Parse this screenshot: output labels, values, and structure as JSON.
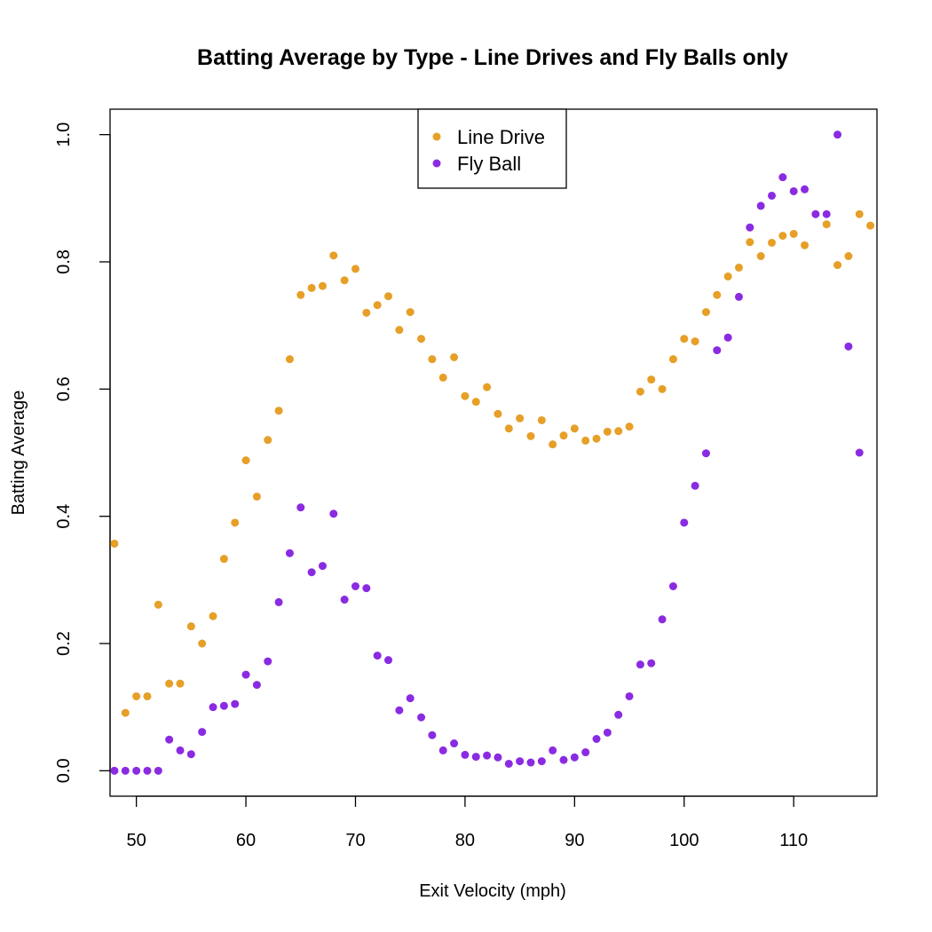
{
  "chart_data": {
    "type": "scatter",
    "title": "Batting Average by Type - Line Drives and Fly Balls only",
    "xlabel": "Exit Velocity (mph)",
    "ylabel": "Batting Average",
    "xlim": [
      47.6,
      117.6
    ],
    "ylim": [
      -0.04,
      1.04
    ],
    "xticks": [
      50,
      60,
      70,
      80,
      90,
      100,
      110
    ],
    "xtick_labels": [
      "50",
      "60",
      "70",
      "80",
      "90",
      "100",
      "110"
    ],
    "yticks": [
      0.0,
      0.2,
      0.4,
      0.6,
      0.8,
      1.0
    ],
    "ytick_labels": [
      "0.0",
      "0.2",
      "0.4",
      "0.6",
      "0.8",
      "1.0"
    ],
    "grid": false,
    "legend_position": "top-center",
    "series": [
      {
        "name": "Line Drive",
        "color": "#E69F27",
        "x": [
          48,
          49,
          50,
          51,
          52,
          53,
          54,
          55,
          56,
          57,
          58,
          59,
          60,
          61,
          62,
          63,
          64,
          65,
          66,
          67,
          68,
          69,
          70,
          71,
          72,
          73,
          74,
          75,
          76,
          77,
          78,
          79,
          80,
          81,
          82,
          83,
          84,
          85,
          86,
          87,
          88,
          89,
          90,
          91,
          92,
          93,
          94,
          95,
          96,
          97,
          98,
          99,
          100,
          101,
          102,
          103,
          104,
          105,
          106,
          107,
          108,
          109,
          110,
          111,
          112,
          113,
          114,
          115,
          116,
          117
        ],
        "y": [
          0.357,
          0.091,
          0.117,
          0.117,
          0.261,
          0.137,
          0.137,
          0.227,
          0.2,
          0.243,
          0.333,
          0.39,
          0.488,
          0.431,
          0.52,
          0.566,
          0.647,
          0.748,
          0.759,
          0.762,
          0.81,
          0.771,
          0.789,
          0.72,
          0.732,
          0.746,
          0.693,
          0.721,
          0.679,
          0.647,
          0.618,
          0.65,
          0.589,
          0.58,
          0.603,
          0.561,
          0.538,
          0.554,
          0.526,
          0.551,
          0.513,
          0.527,
          0.538,
          0.519,
          0.522,
          0.533,
          0.534,
          0.541,
          0.596,
          0.615,
          0.6,
          0.647,
          0.679,
          0.675,
          0.721,
          0.748,
          0.777,
          0.791,
          0.831,
          0.809,
          0.83,
          0.841,
          0.844,
          0.826,
          0.875,
          0.859,
          0.795,
          0.809,
          0.875,
          0.857
        ]
      },
      {
        "name": "Fly Ball",
        "color": "#8A2BE2",
        "x": [
          48,
          49,
          50,
          51,
          52,
          53,
          54,
          55,
          56,
          57,
          58,
          59,
          60,
          61,
          62,
          63,
          64,
          65,
          66,
          67,
          68,
          69,
          70,
          71,
          72,
          73,
          74,
          75,
          76,
          77,
          78,
          79,
          80,
          81,
          82,
          83,
          84,
          85,
          86,
          87,
          88,
          89,
          90,
          91,
          92,
          93,
          94,
          95,
          96,
          97,
          98,
          99,
          100,
          101,
          102,
          103,
          104,
          105,
          106,
          107,
          108,
          109,
          110,
          111,
          112,
          113,
          114,
          115,
          116
        ],
        "y": [
          0,
          0,
          0,
          0,
          0,
          0.049,
          0.032,
          0.026,
          0.061,
          0.1,
          0.102,
          0.105,
          0.151,
          0.135,
          0.172,
          0.265,
          0.342,
          0.414,
          0.312,
          0.322,
          0.404,
          0.269,
          0.29,
          0.287,
          0.181,
          0.174,
          0.095,
          0.114,
          0.084,
          0.056,
          0.032,
          0.043,
          0.025,
          0.022,
          0.024,
          0.021,
          0.011,
          0.015,
          0.013,
          0.015,
          0.032,
          0.017,
          0.021,
          0.029,
          0.05,
          0.06,
          0.088,
          0.117,
          0.167,
          0.169,
          0.238,
          0.29,
          0.39,
          0.448,
          0.499,
          0.661,
          0.681,
          0.745,
          0.854,
          0.888,
          0.904,
          0.933,
          0.911,
          0.914,
          0.875,
          0.875,
          1.0,
          0.667,
          0.5
        ]
      }
    ]
  }
}
